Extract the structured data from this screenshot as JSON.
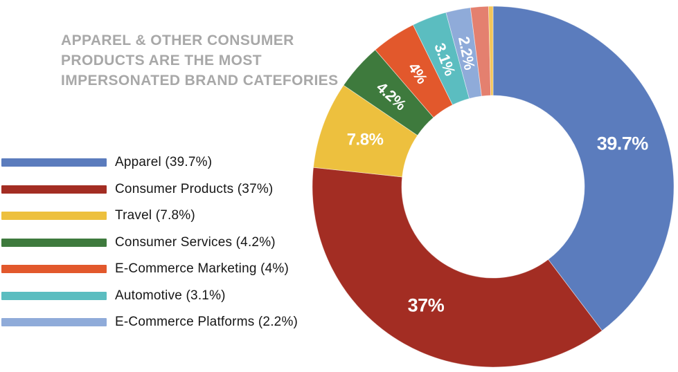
{
  "header": {
    "title_line1": "APPAREL & OTHER CONSUMER",
    "title_line2": "PRODUCTS ARE THE MOST",
    "title_line3": "IMPERSONATED BRAND CATEFORIES"
  },
  "legend": {
    "items": [
      {
        "label": "Apparel (39.7%)",
        "color": "#5b7cbd"
      },
      {
        "label": "Consumer Products (37%)",
        "color": "#a32d23"
      },
      {
        "label": "Travel (7.8%)",
        "color": "#edc03e"
      },
      {
        "label": "Consumer Services (4.2%)",
        "color": "#3e7a3d"
      },
      {
        "label": "E-Commerce Marketing (4%)",
        "color": "#e2582c"
      },
      {
        "label": "Automotive (3.1%)",
        "color": "#5bbdc0"
      },
      {
        "label": "E-Commerce Platforms (2.2%)",
        "color": "#8fabd9"
      }
    ]
  },
  "chart_data": {
    "type": "pie",
    "subtype": "donut",
    "title": "APPAREL & OTHER CONSUMER PRODUCTS ARE THE MOST IMPERSONATED BRAND CATEFORIES",
    "legend_position": "left",
    "start_angle_deg": 0,
    "direction": "clockwise",
    "slices": [
      {
        "name": "Apparel",
        "value": 39.7,
        "label": "39.7%",
        "color": "#5b7cbd"
      },
      {
        "name": "Consumer Products",
        "value": 37,
        "label": "37%",
        "color": "#a32d23"
      },
      {
        "name": "Travel",
        "value": 7.8,
        "label": "7.8%",
        "color": "#edc03e"
      },
      {
        "name": "Consumer Services",
        "value": 4.2,
        "label": "4.2%",
        "color": "#3e7a3d"
      },
      {
        "name": "E-Commerce Marketing",
        "value": 4,
        "label": "4%",
        "color": "#e2582c"
      },
      {
        "name": "Automotive",
        "value": 3.1,
        "label": "3.1%",
        "color": "#5bbdc0"
      },
      {
        "name": "E-Commerce Platforms",
        "value": 2.2,
        "label": "2.2%",
        "color": "#8fabd9"
      },
      {
        "name": "other-1",
        "value": 1.6,
        "label": "",
        "color": "#e4806f"
      },
      {
        "name": "other-2",
        "value": 0.4,
        "label": "",
        "color": "#f3c65a"
      }
    ]
  }
}
